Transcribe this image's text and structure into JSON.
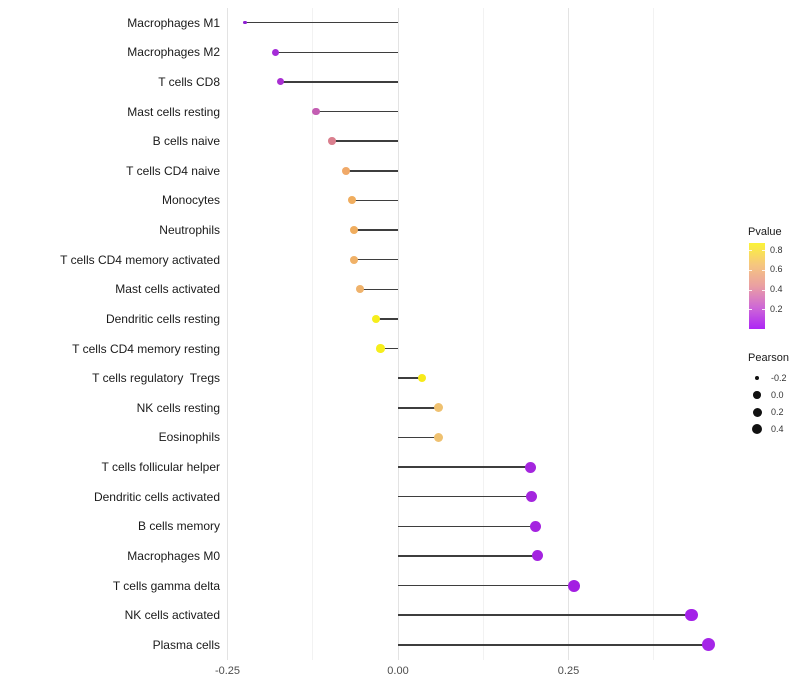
{
  "chart_data": {
    "type": "lollipop",
    "title": "",
    "xlabel": "",
    "ylabel": "",
    "xlim": [
      -0.258,
      0.49
    ],
    "grid": "major+minor vertical, light gray on white",
    "x_axis": {
      "ticks": [
        {
          "value": -0.25,
          "label": "-0.25"
        },
        {
          "value": 0.0,
          "label": "0.00"
        },
        {
          "value": 0.25,
          "label": "0.25"
        }
      ],
      "minor_ticks": [
        -0.125,
        0.125,
        0.375
      ]
    },
    "series_encoding": {
      "x": "Pearson correlation (dot position, stick drawn from 0 to value)",
      "color": "Pvalue (purple = low, yellow = high)",
      "size": "Pearson (bigger = larger value)"
    },
    "points": [
      {
        "label": "Macrophages M1",
        "pearson": -0.224,
        "pvalue": 0.08,
        "color": "#8E1FD2",
        "size": 3.5
      },
      {
        "label": "Macrophages M2",
        "pearson": -0.179,
        "pvalue": 0.1,
        "color": "#A52CD8",
        "size": 7
      },
      {
        "label": "T cells CD8",
        "pearson": -0.173,
        "pvalue": 0.12,
        "color": "#A92FD2",
        "size": 7
      },
      {
        "label": "Mast cells resting",
        "pearson": -0.12,
        "pvalue": 0.27,
        "color": "#C35DB2",
        "size": 7.5
      },
      {
        "label": "B cells naive",
        "pearson": -0.097,
        "pvalue": 0.37,
        "color": "#DA7F8E",
        "size": 7.5
      },
      {
        "label": "T cells CD4 naive",
        "pearson": -0.076,
        "pvalue": 0.5,
        "color": "#F0A968",
        "size": 8
      },
      {
        "label": "Monocytes",
        "pearson": -0.067,
        "pvalue": 0.52,
        "color": "#F0AD5E",
        "size": 8
      },
      {
        "label": "Neutrophils",
        "pearson": -0.065,
        "pvalue": 0.52,
        "color": "#F0AD5E",
        "size": 8
      },
      {
        "label": "T cells CD4 memory activated",
        "pearson": -0.065,
        "pvalue": 0.52,
        "color": "#F0B167",
        "size": 8
      },
      {
        "label": "Mast cells activated",
        "pearson": -0.056,
        "pvalue": 0.53,
        "color": "#EFB26B",
        "size": 8
      },
      {
        "label": "Dendritic cells resting",
        "pearson": -0.032,
        "pvalue": 0.8,
        "color": "#F6EE1C",
        "size": 8.5
      },
      {
        "label": "T cells CD4 memory resting",
        "pearson": -0.026,
        "pvalue": 0.8,
        "color": "#F6EE1C",
        "size": 8.5
      },
      {
        "label": "T cells regulatory  Tregs",
        "pearson": 0.035,
        "pvalue": 0.78,
        "color": "#F7EA1A",
        "size": 8.5
      },
      {
        "label": "NK cells resting",
        "pearson": 0.06,
        "pvalue": 0.56,
        "color": "#EFC170",
        "size": 9
      },
      {
        "label": "Eosinophils",
        "pearson": 0.06,
        "pvalue": 0.56,
        "color": "#EFC170",
        "size": 9
      },
      {
        "label": "T cells follicular helper",
        "pearson": 0.194,
        "pvalue": 0.06,
        "color": "#A426DE",
        "size": 11
      },
      {
        "label": "Dendritic cells activated",
        "pearson": 0.196,
        "pvalue": 0.06,
        "color": "#A426DE",
        "size": 11
      },
      {
        "label": "B cells memory",
        "pearson": 0.202,
        "pvalue": 0.05,
        "color": "#A423E0",
        "size": 11
      },
      {
        "label": "Macrophages M0",
        "pearson": 0.204,
        "pvalue": 0.05,
        "color": "#A423E0",
        "size": 11
      },
      {
        "label": "T cells gamma delta",
        "pearson": 0.258,
        "pvalue": 0.04,
        "color": "#A31EE2",
        "size": 12
      },
      {
        "label": "NK cells activated",
        "pearson": 0.43,
        "pvalue": 0.02,
        "color": "#A421E8",
        "size": 12.5
      },
      {
        "label": "Plasma cells",
        "pearson": 0.456,
        "pvalue": 0.01,
        "color": "#A526E8",
        "size": 13
      }
    ],
    "legend_pvalue": {
      "title": "Pvalue",
      "position": "right",
      "tick_labels": [
        "0.8",
        "0.6",
        "0.4",
        "0.2"
      ],
      "gradient_top_to_bottom": [
        "#FBF338",
        "#F6C77E",
        "#EA9FA2",
        "#CE68D6",
        "#AD26F5"
      ]
    },
    "legend_pearson": {
      "title": "Pearson",
      "position": "right",
      "items": [
        {
          "label": "-0.2",
          "size": 4.5
        },
        {
          "label": "0.0",
          "size": 7.5
        },
        {
          "label": "0.2",
          "size": 9
        },
        {
          "label": "0.4",
          "size": 10.5
        }
      ]
    }
  }
}
